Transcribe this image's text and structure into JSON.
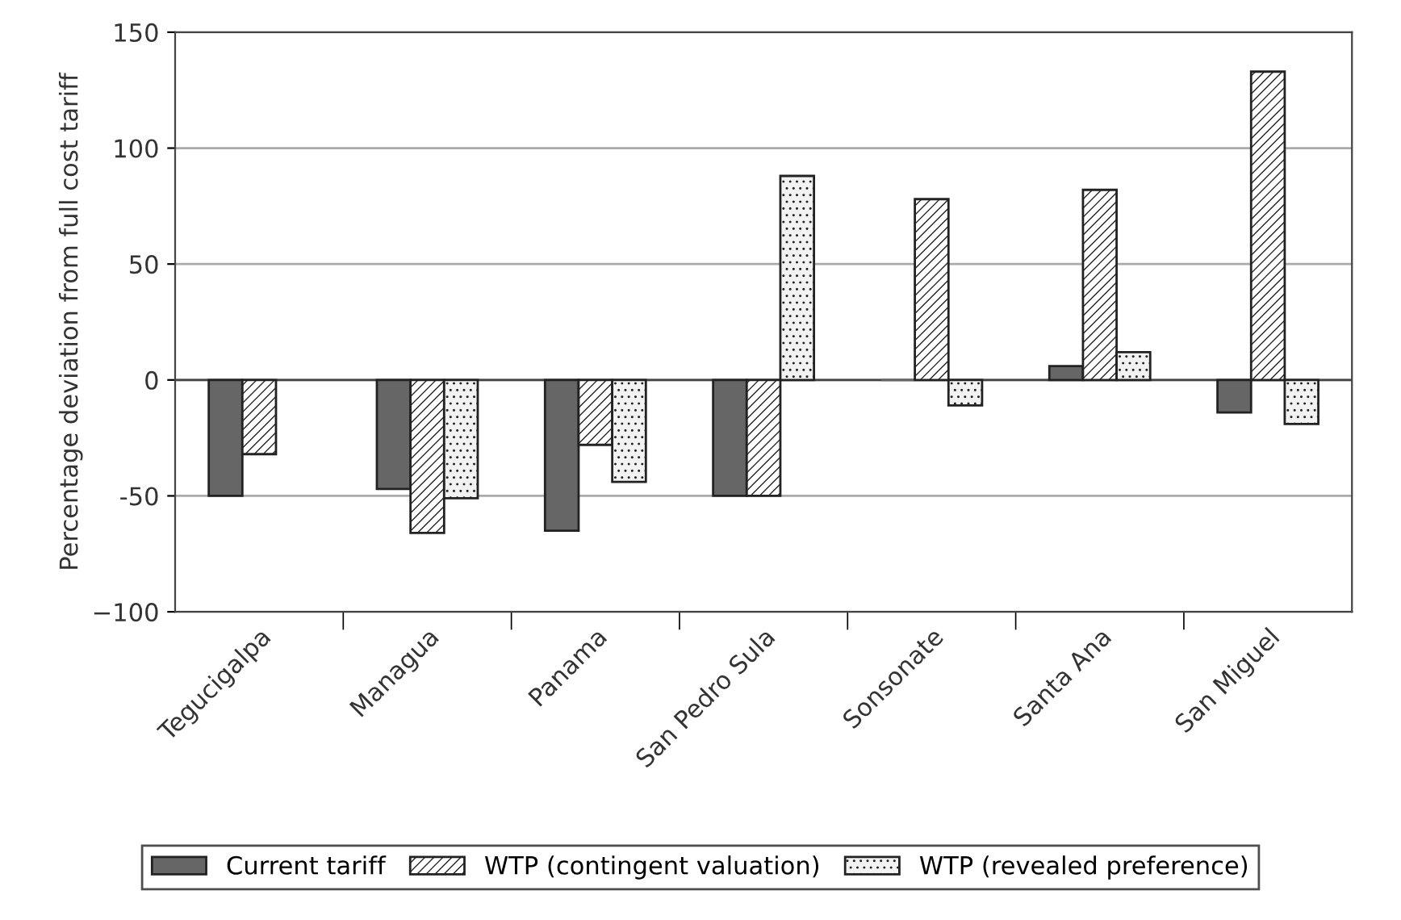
{
  "chart_data": {
    "type": "bar",
    "ylabel": "Percentage deviation from full cost tariff",
    "categories": [
      "Tegucigalpa",
      "Managua",
      "Panama",
      "San Pedro Sula",
      "Sonsonate",
      "Santa Ana",
      "San Miguel"
    ],
    "series": [
      {
        "name": "Current tariff",
        "color": "#666666",
        "values": [
          -50,
          -47,
          -65,
          -50,
          0,
          6,
          -14
        ]
      },
      {
        "name": "WTP (contingent valuation)",
        "color": "#ffffff",
        "values": [
          -32,
          -66,
          -28,
          -50,
          78,
          82,
          133
        ]
      },
      {
        "name": "WTP (revealed preference)",
        "color": "#f2f2f2",
        "values": [
          null,
          -51,
          -44,
          88,
          -11,
          12,
          -19
        ]
      }
    ],
    "ylim": [
      -100,
      150
    ],
    "yticks": [
      {
        "value": -100,
        "label": "−100"
      },
      -50,
      0,
      50,
      100,
      150
    ],
    "ref_lines": [
      {
        "axis": "y",
        "value": 0,
        "color": "#444444"
      }
    ],
    "grid": "y",
    "legend": "bottom"
  }
}
